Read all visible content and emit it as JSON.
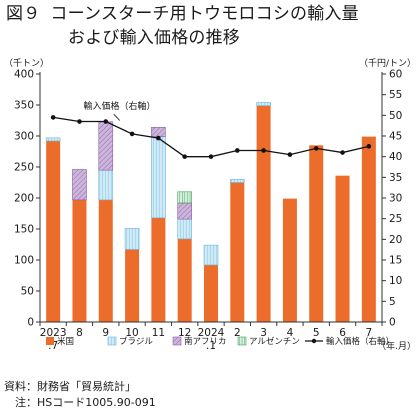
{
  "title": {
    "figure_label": "図９",
    "line1": "コーンスターチ用トウモロコシの輸入量",
    "line2": "および輸入価格の推移"
  },
  "chart_data": {
    "type": "bar",
    "stacked": true,
    "categories": [
      "2023\n.7",
      "8",
      "9",
      "10",
      "11",
      "12",
      "2024\n.1",
      "2",
      "3",
      "4",
      "5",
      "6",
      "7"
    ],
    "series": [
      {
        "name": "米国",
        "color": "#ec6d2b",
        "values": [
          292,
          197,
          197,
          117,
          168,
          134,
          92,
          225,
          349,
          199,
          285,
          236,
          299
        ]
      },
      {
        "name": "ブラジル",
        "color": "#cfeaf7",
        "values": [
          5,
          0,
          48,
          34,
          131,
          32,
          32,
          5,
          5,
          0,
          0,
          0,
          0
        ]
      },
      {
        "name": "南アフリカ",
        "color": "#cdb6dc",
        "values": [
          0,
          49,
          78,
          0,
          15,
          26,
          0,
          0,
          0,
          0,
          0,
          0,
          0
        ]
      },
      {
        "name": "アルゼンチン",
        "color": "#d7eedd",
        "values": [
          0,
          0,
          0,
          0,
          0,
          18,
          0,
          0,
          0,
          0,
          0,
          0,
          0
        ]
      }
    ],
    "line": {
      "name": "輸入価格（右軸）",
      "values": [
        49.5,
        48.5,
        48.5,
        45.5,
        44.5,
        40.0,
        40.0,
        41.5,
        41.5,
        40.5,
        42.0,
        41.0,
        42.5
      ]
    },
    "ylabel_left": "（千トン）",
    "ylabel_right": "（千円/トン）",
    "xlabel_unit": "（年.月）",
    "ylim_left": [
      0,
      400
    ],
    "ylim_right": [
      0,
      60
    ],
    "yticks_left": [
      0,
      50,
      100,
      150,
      200,
      250,
      300,
      350,
      400
    ],
    "yticks_right": [
      0,
      5,
      10,
      15,
      20,
      25,
      30,
      35,
      40,
      45,
      50,
      55,
      60
    ],
    "line_annotation": "輸入価格（右軸）",
    "legend_position": "bottom",
    "grid": false
  },
  "notes": {
    "source": "資料：財務省「貿易統計」",
    "note": "　注：HSコード1005.90-091"
  }
}
